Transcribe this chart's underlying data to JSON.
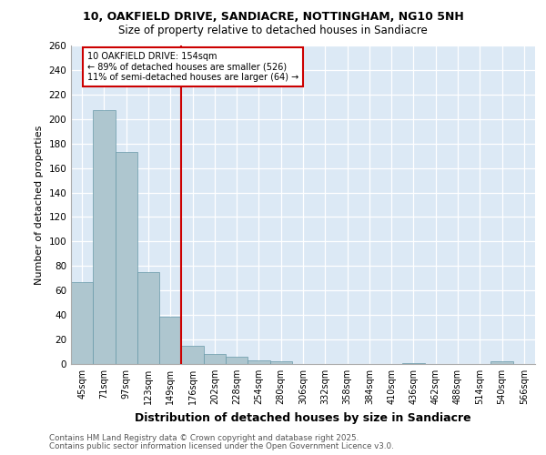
{
  "title1": "10, OAKFIELD DRIVE, SANDIACRE, NOTTINGHAM, NG10 5NH",
  "title2": "Size of property relative to detached houses in Sandiacre",
  "xlabel": "Distribution of detached houses by size in Sandiacre",
  "ylabel": "Number of detached properties",
  "categories": [
    "45sqm",
    "71sqm",
    "97sqm",
    "123sqm",
    "149sqm",
    "176sqm",
    "202sqm",
    "228sqm",
    "254sqm",
    "280sqm",
    "306sqm",
    "332sqm",
    "358sqm",
    "384sqm",
    "410sqm",
    "436sqm",
    "462sqm",
    "488sqm",
    "514sqm",
    "540sqm",
    "566sqm"
  ],
  "values": [
    67,
    207,
    173,
    75,
    39,
    15,
    8,
    6,
    3,
    2,
    0,
    0,
    0,
    0,
    0,
    1,
    0,
    0,
    0,
    2,
    0
  ],
  "bar_color": "#aec6cf",
  "bar_edge_color": "#6899a8",
  "background_color": "#dce9f5",
  "grid_color": "#ffffff",
  "vline_x": 4.5,
  "vline_color": "#cc0000",
  "annotation_title": "10 OAKFIELD DRIVE: 154sqm",
  "annotation_line1": "← 89% of detached houses are smaller (526)",
  "annotation_line2": "11% of semi-detached houses are larger (64) →",
  "annotation_box_edgecolor": "#cc0000",
  "ylim": [
    0,
    260
  ],
  "yticks": [
    0,
    20,
    40,
    60,
    80,
    100,
    120,
    140,
    160,
    180,
    200,
    220,
    240,
    260
  ],
  "footnote1": "Contains HM Land Registry data © Crown copyright and database right 2025.",
  "footnote2": "Contains public sector information licensed under the Open Government Licence v3.0."
}
